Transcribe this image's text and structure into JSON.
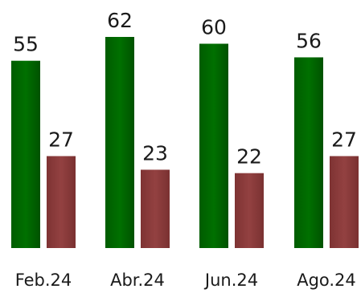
{
  "chart_data": {
    "type": "bar",
    "categories": [
      "Feb.24",
      "Abr.24",
      "Jun.24",
      "Ago.24"
    ],
    "series": [
      {
        "values": [
          55,
          62,
          60,
          56
        ],
        "color": "#006400"
      },
      {
        "values": [
          27,
          23,
          22,
          27
        ],
        "color": "#8b3a3a"
      }
    ],
    "title": "",
    "xlabel": "",
    "ylabel": "",
    "ylim": [
      0,
      62
    ],
    "grid": false,
    "legend": "none"
  }
}
